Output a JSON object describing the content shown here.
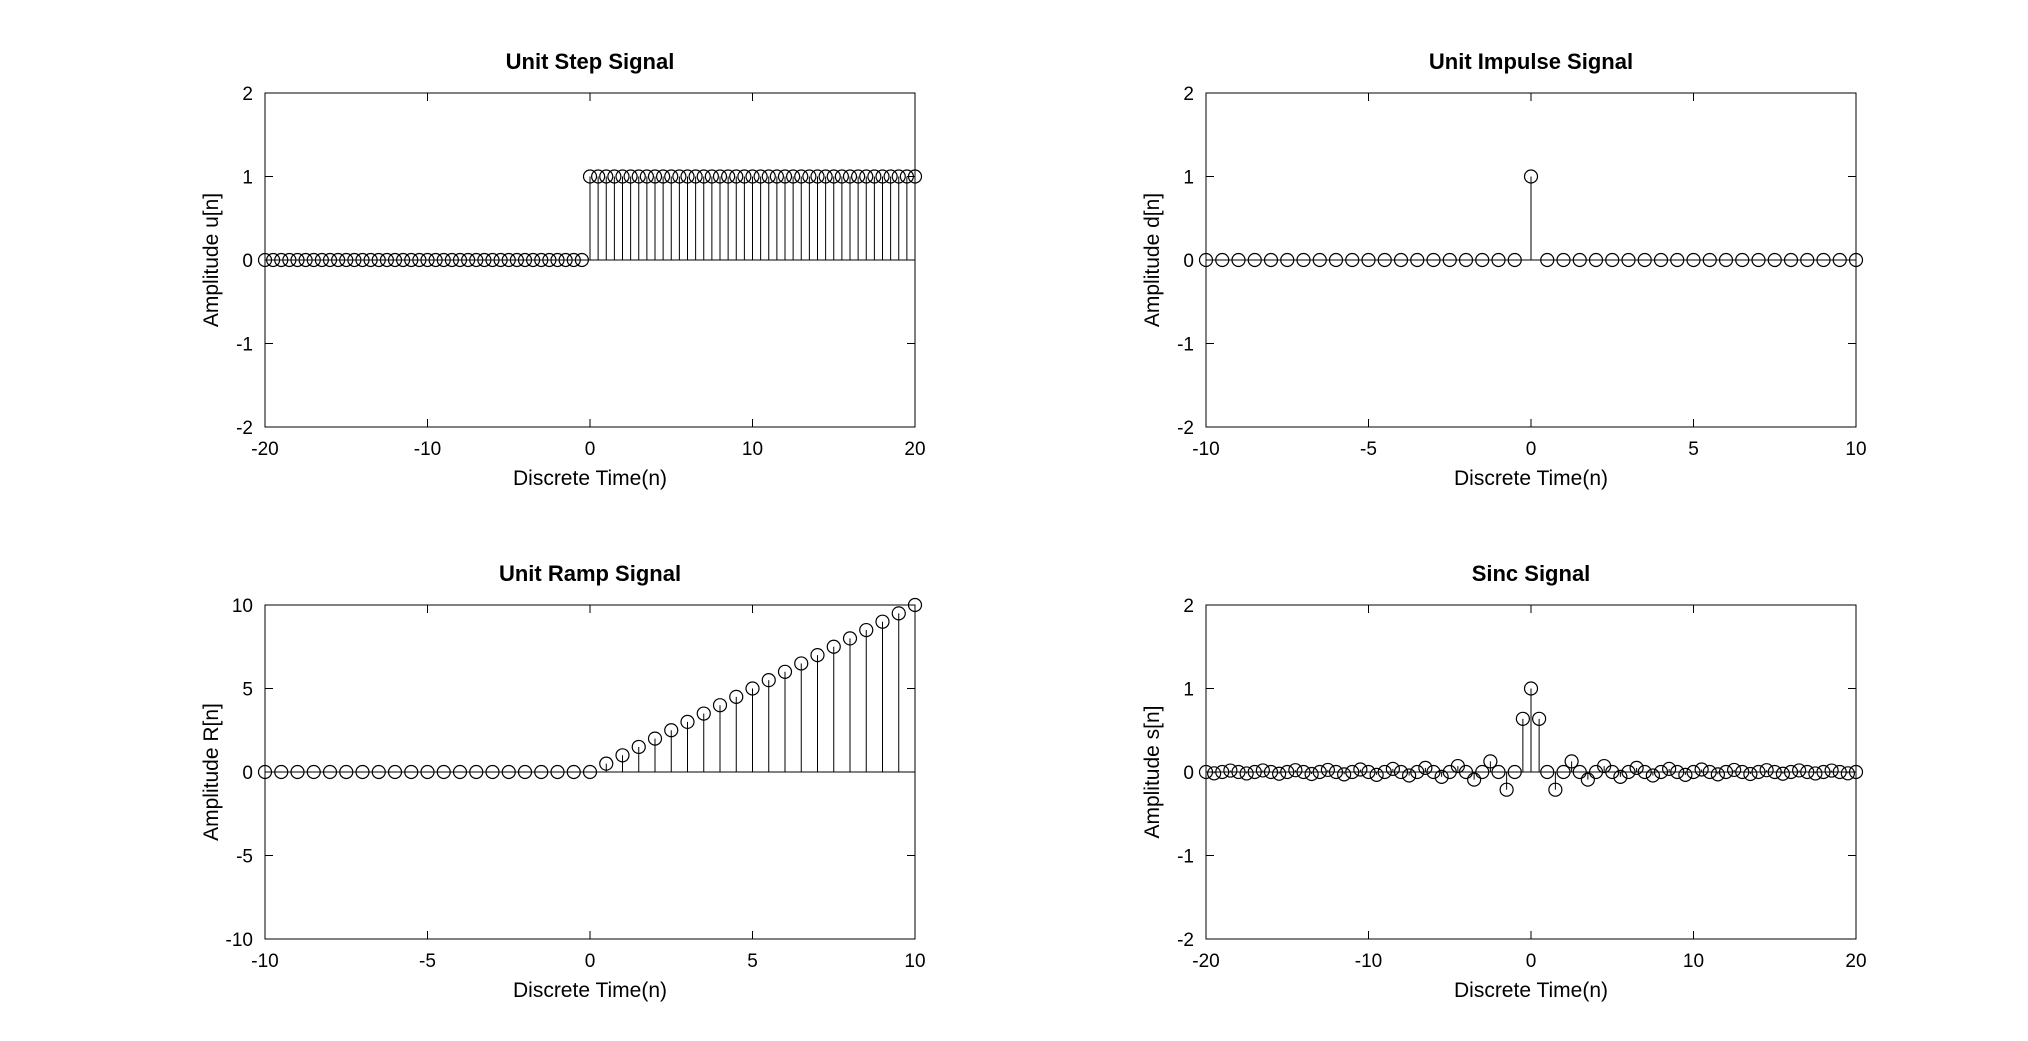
{
  "chart_data": [
    {
      "type": "stem",
      "title": "Unit Step Signal",
      "xlabel": "Discrete Time(n)",
      "ylabel": "Amplitude u[n]",
      "xlim": [
        -20,
        20
      ],
      "ylim": [
        -2,
        2
      ],
      "xticks": [
        -20,
        -10,
        0,
        10,
        20
      ],
      "yticks": [
        -2,
        -1,
        0,
        1,
        2
      ],
      "x": [
        -20,
        -19.5,
        -19,
        -18.5,
        -18,
        -17.5,
        -17,
        -16.5,
        -16,
        -15.5,
        -15,
        -14.5,
        -14,
        -13.5,
        -13,
        -12.5,
        -12,
        -11.5,
        -11,
        -10.5,
        -10,
        -9.5,
        -9,
        -8.5,
        -8,
        -7.5,
        -7,
        -6.5,
        -6,
        -5.5,
        -5,
        -4.5,
        -4,
        -3.5,
        -3,
        -2.5,
        -2,
        -1.5,
        -1,
        -0.5,
        0,
        0.5,
        1,
        1.5,
        2,
        2.5,
        3,
        3.5,
        4,
        4.5,
        5,
        5.5,
        6,
        6.5,
        7,
        7.5,
        8,
        8.5,
        9,
        9.5,
        10,
        10.5,
        11,
        11.5,
        12,
        12.5,
        13,
        13.5,
        14,
        14.5,
        15,
        15.5,
        16,
        16.5,
        17,
        17.5,
        18,
        18.5,
        19,
        19.5,
        20
      ],
      "y": [
        0,
        0,
        0,
        0,
        0,
        0,
        0,
        0,
        0,
        0,
        0,
        0,
        0,
        0,
        0,
        0,
        0,
        0,
        0,
        0,
        0,
        0,
        0,
        0,
        0,
        0,
        0,
        0,
        0,
        0,
        0,
        0,
        0,
        0,
        0,
        0,
        0,
        0,
        0,
        0,
        1,
        1,
        1,
        1,
        1,
        1,
        1,
        1,
        1,
        1,
        1,
        1,
        1,
        1,
        1,
        1,
        1,
        1,
        1,
        1,
        1,
        1,
        1,
        1,
        1,
        1,
        1,
        1,
        1,
        1,
        1,
        1,
        1,
        1,
        1,
        1,
        1,
        1,
        1,
        1,
        1
      ],
      "grid": false,
      "marker": "open-circle",
      "color": "#000000"
    },
    {
      "type": "stem",
      "title": "Unit Impulse Signal",
      "xlabel": "Discrete Time(n)",
      "ylabel": "Amplitude d[n]",
      "xlim": [
        -10,
        10
      ],
      "ylim": [
        -2,
        2
      ],
      "xticks": [
        -10,
        -5,
        0,
        5,
        10
      ],
      "yticks": [
        -2,
        -1,
        0,
        1,
        2
      ],
      "x": [
        -10,
        -9.5,
        -9,
        -8.5,
        -8,
        -7.5,
        -7,
        -6.5,
        -6,
        -5.5,
        -5,
        -4.5,
        -4,
        -3.5,
        -3,
        -2.5,
        -2,
        -1.5,
        -1,
        -0.5,
        0,
        0.5,
        1,
        1.5,
        2,
        2.5,
        3,
        3.5,
        4,
        4.5,
        5,
        5.5,
        6,
        6.5,
        7,
        7.5,
        8,
        8.5,
        9,
        9.5,
        10
      ],
      "y": [
        0,
        0,
        0,
        0,
        0,
        0,
        0,
        0,
        0,
        0,
        0,
        0,
        0,
        0,
        0,
        0,
        0,
        0,
        0,
        0,
        1,
        0,
        0,
        0,
        0,
        0,
        0,
        0,
        0,
        0,
        0,
        0,
        0,
        0,
        0,
        0,
        0,
        0,
        0,
        0,
        0
      ],
      "grid": false,
      "marker": "open-circle",
      "color": "#000000"
    },
    {
      "type": "stem",
      "title": "Unit Ramp Signal",
      "xlabel": "Discrete Time(n)",
      "ylabel": "Amplitude R[n]",
      "xlim": [
        -10,
        10
      ],
      "ylim": [
        -10,
        10
      ],
      "xticks": [
        -10,
        -5,
        0,
        5,
        10
      ],
      "yticks": [
        -10,
        -5,
        0,
        5,
        10
      ],
      "x": [
        -10,
        -9.5,
        -9,
        -8.5,
        -8,
        -7.5,
        -7,
        -6.5,
        -6,
        -5.5,
        -5,
        -4.5,
        -4,
        -3.5,
        -3,
        -2.5,
        -2,
        -1.5,
        -1,
        -0.5,
        0,
        0.5,
        1,
        1.5,
        2,
        2.5,
        3,
        3.5,
        4,
        4.5,
        5,
        5.5,
        6,
        6.5,
        7,
        7.5,
        8,
        8.5,
        9,
        9.5,
        10
      ],
      "y": [
        0,
        0,
        0,
        0,
        0,
        0,
        0,
        0,
        0,
        0,
        0,
        0,
        0,
        0,
        0,
        0,
        0,
        0,
        0,
        0,
        0,
        0.5,
        1,
        1.5,
        2,
        2.5,
        3,
        3.5,
        4,
        4.5,
        5,
        5.5,
        6,
        6.5,
        7,
        7.5,
        8,
        8.5,
        9,
        9.5,
        10
      ],
      "grid": false,
      "marker": "open-circle",
      "color": "#000000"
    },
    {
      "type": "stem",
      "title": "Sinc Signal",
      "xlabel": "Discrete Time(n)",
      "ylabel": "Amplitude s[n]",
      "xlim": [
        -20,
        20
      ],
      "ylim": [
        -2,
        2
      ],
      "xticks": [
        -20,
        -10,
        0,
        10,
        20
      ],
      "yticks": [
        -2,
        -1,
        0,
        1,
        2
      ],
      "x": [
        -20,
        -19.5,
        -19,
        -18.5,
        -18,
        -17.5,
        -17,
        -16.5,
        -16,
        -15.5,
        -15,
        -14.5,
        -14,
        -13.5,
        -13,
        -12.5,
        -12,
        -11.5,
        -11,
        -10.5,
        -10,
        -9.5,
        -9,
        -8.5,
        -8,
        -7.5,
        -7,
        -6.5,
        -6,
        -5.5,
        -5,
        -4.5,
        -4,
        -3.5,
        -3,
        -2.5,
        -2,
        -1.5,
        -1,
        -0.5,
        0,
        0.5,
        1,
        1.5,
        2,
        2.5,
        3,
        3.5,
        4,
        4.5,
        5,
        5.5,
        6,
        6.5,
        7,
        7.5,
        8,
        8.5,
        9,
        9.5,
        10,
        10.5,
        11,
        11.5,
        12,
        12.5,
        13,
        13.5,
        14,
        14.5,
        15,
        15.5,
        16,
        16.5,
        17,
        17.5,
        18,
        18.5,
        19,
        19.5,
        20
      ],
      "y": [
        0,
        -0.016,
        0,
        0.017,
        0,
        -0.017,
        0,
        0.019,
        0,
        -0.021,
        0,
        0.022,
        0,
        -0.024,
        0,
        0.025,
        0,
        -0.028,
        0,
        0.03,
        0,
        -0.034,
        0,
        0.037,
        0,
        -0.042,
        0,
        0.049,
        0,
        -0.058,
        0,
        0.071,
        0,
        -0.091,
        0,
        0.127,
        0,
        -0.212,
        0,
        0.637,
        1,
        0.637,
        0,
        -0.212,
        0,
        0.127,
        0,
        -0.091,
        0,
        0.071,
        0,
        -0.058,
        0,
        0.049,
        0,
        -0.042,
        0,
        0.037,
        0,
        -0.034,
        0,
        0.03,
        0,
        -0.028,
        0,
        0.025,
        0,
        -0.024,
        0,
        0.022,
        0,
        -0.021,
        0,
        0.019,
        0,
        -0.017,
        0,
        0.017,
        0,
        -0.016,
        0
      ],
      "grid": false,
      "marker": "open-circle",
      "color": "#000000"
    }
  ]
}
